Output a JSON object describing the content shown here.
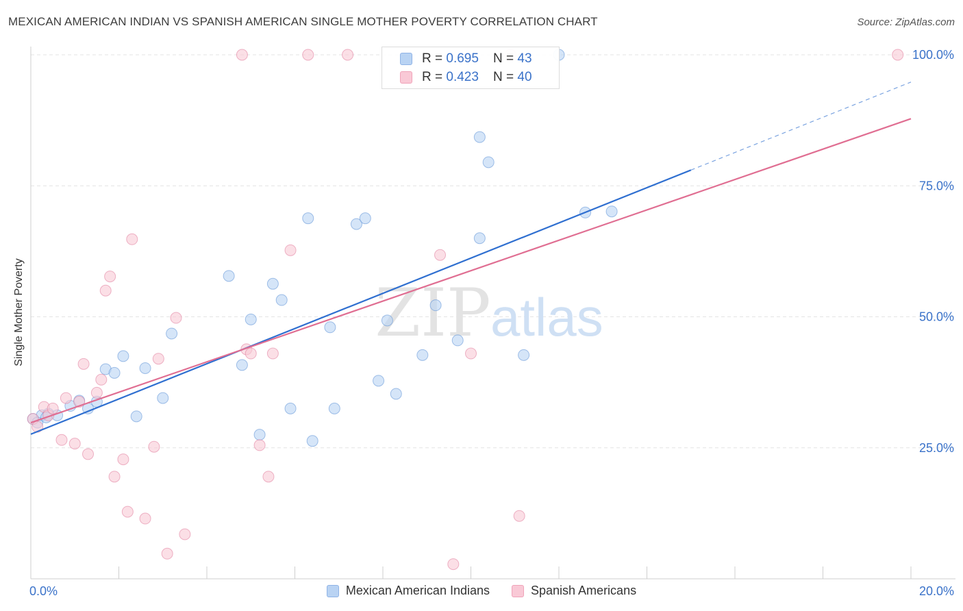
{
  "title": "MEXICAN AMERICAN INDIAN VS SPANISH AMERICAN SINGLE MOTHER POVERTY CORRELATION CHART",
  "source": "Source: ZipAtlas.com",
  "watermark": {
    "zip": "ZIP",
    "atlas": "atlas"
  },
  "stats_legend": [
    {
      "r_label": "R = ",
      "r_value": "0.695",
      "n_label": "N = ",
      "n_value": "43",
      "color": "#b9d3f3"
    },
    {
      "r_label": "R = ",
      "r_value": "0.423",
      "n_label": "N = ",
      "n_value": "40",
      "color": "#f9c9d6"
    }
  ],
  "chart_data": {
    "type": "scatter",
    "title": "MEXICAN AMERICAN INDIAN VS SPANISH AMERICAN SINGLE MOTHER POVERTY CORRELATION CHART",
    "xlabel": "",
    "ylabel": "Single Mother Poverty",
    "xlim": [
      0,
      20
    ],
    "ylim": [
      0,
      102
    ],
    "x_tick_labels": [
      "0.0%",
      "20.0%"
    ],
    "y_ticks": [
      25,
      50,
      75,
      100
    ],
    "y_tick_labels": [
      "25.0%",
      "50.0%",
      "75.0%",
      "100.0%"
    ],
    "grid": true,
    "legend_position": "bottom",
    "series": [
      {
        "name": "Mexican American Indians",
        "color": "#5b8fd6",
        "fill": "#b9d3f3",
        "points": [
          [
            0.05,
            30.5
          ],
          [
            0.25,
            31.2
          ],
          [
            0.4,
            31.5
          ],
          [
            0.6,
            31.2
          ],
          [
            0.9,
            33.0
          ],
          [
            1.1,
            34.0
          ],
          [
            1.3,
            32.5
          ],
          [
            1.5,
            33.8
          ],
          [
            1.7,
            40.0
          ],
          [
            1.9,
            39.3
          ],
          [
            2.1,
            42.5
          ],
          [
            2.4,
            31.0
          ],
          [
            2.6,
            40.2
          ],
          [
            3.0,
            34.5
          ],
          [
            3.2,
            46.8
          ],
          [
            4.5,
            57.8
          ],
          [
            4.8,
            40.8
          ],
          [
            5.0,
            49.5
          ],
          [
            5.2,
            27.5
          ],
          [
            5.5,
            56.3
          ],
          [
            5.7,
            53.2
          ],
          [
            5.9,
            32.5
          ],
          [
            6.3,
            68.8
          ],
          [
            6.4,
            26.3
          ],
          [
            6.8,
            48.0
          ],
          [
            6.9,
            32.5
          ],
          [
            7.4,
            67.7
          ],
          [
            7.6,
            68.8
          ],
          [
            7.9,
            37.8
          ],
          [
            8.1,
            49.3
          ],
          [
            8.3,
            35.3
          ],
          [
            8.9,
            42.7
          ],
          [
            9.2,
            52.2
          ],
          [
            9.7,
            45.5
          ],
          [
            10.2,
            65.0
          ],
          [
            10.2,
            84.3
          ],
          [
            10.4,
            79.5
          ],
          [
            11.2,
            42.7
          ],
          [
            12.0,
            100.0
          ],
          [
            12.6,
            69.9
          ],
          [
            13.2,
            70.1
          ],
          [
            0.15,
            29.8
          ],
          [
            0.35,
            30.8
          ]
        ],
        "trendline": {
          "x": [
            0,
            15.0
          ],
          "y": [
            27.6,
            78.0
          ],
          "dashed_extension": {
            "x": [
              15.0,
              20.0
            ],
            "y": [
              78.0,
              94.8
            ]
          }
        }
      },
      {
        "name": "Spanish Americans",
        "color": "#e07a9a",
        "fill": "#f9c9d6",
        "points": [
          [
            0.05,
            30.5
          ],
          [
            0.15,
            29.0
          ],
          [
            0.3,
            32.8
          ],
          [
            0.4,
            31.2
          ],
          [
            0.5,
            32.5
          ],
          [
            0.7,
            26.5
          ],
          [
            0.8,
            34.5
          ],
          [
            1.0,
            25.8
          ],
          [
            1.1,
            33.8
          ],
          [
            1.2,
            41.0
          ],
          [
            1.3,
            23.8
          ],
          [
            1.5,
            35.5
          ],
          [
            1.6,
            38.0
          ],
          [
            1.7,
            55.0
          ],
          [
            1.8,
            57.7
          ],
          [
            1.9,
            19.5
          ],
          [
            2.1,
            22.8
          ],
          [
            2.2,
            12.8
          ],
          [
            2.3,
            64.8
          ],
          [
            2.6,
            11.5
          ],
          [
            2.8,
            25.2
          ],
          [
            2.9,
            42.0
          ],
          [
            3.1,
            4.8
          ],
          [
            3.3,
            49.8
          ],
          [
            3.5,
            8.5
          ],
          [
            4.8,
            100.0
          ],
          [
            4.9,
            43.8
          ],
          [
            5.0,
            43.0
          ],
          [
            5.2,
            25.5
          ],
          [
            5.4,
            19.5
          ],
          [
            5.5,
            43.0
          ],
          [
            5.9,
            62.7
          ],
          [
            6.3,
            100.0
          ],
          [
            7.2,
            100.0
          ],
          [
            9.3,
            61.8
          ],
          [
            9.6,
            2.8
          ],
          [
            10.0,
            43.0
          ],
          [
            10.9,
            100.0
          ],
          [
            11.1,
            12.0
          ],
          [
            19.7,
            100.0
          ]
        ],
        "trendline": {
          "x": [
            0,
            20.0
          ],
          "y": [
            29.8,
            87.8
          ]
        }
      }
    ]
  }
}
